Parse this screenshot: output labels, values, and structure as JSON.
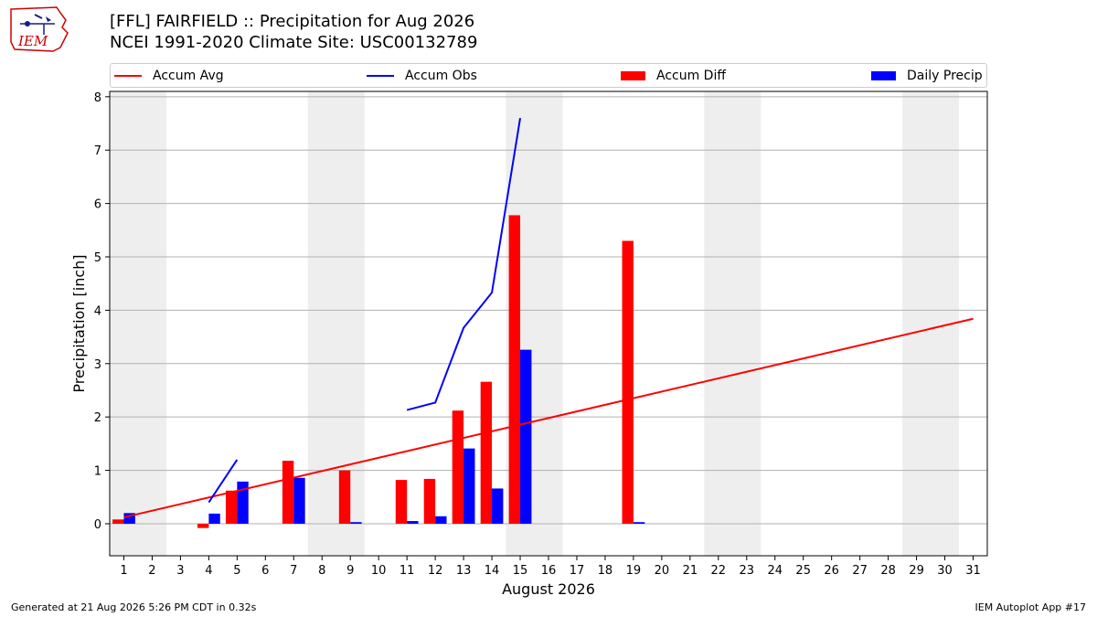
{
  "header": {
    "title_line1": "[FFL] FAIRFIELD :: Precipitation for Aug 2026",
    "title_line2": "NCEI 1991-2020 Climate Site: USC00132789"
  },
  "logo": {
    "text": "IEM",
    "color": "#cc0000"
  },
  "legend": {
    "accum_avg": "Accum Avg",
    "accum_obs": "Accum Obs",
    "accum_diff": "Accum Diff",
    "daily_precip": "Daily Precip"
  },
  "footer": {
    "left": "Generated at 21 Aug 2026 5:26 PM CDT in 0.32s",
    "right": "IEM Autoplot App #17"
  },
  "chart_data": {
    "type": "bar",
    "xlabel": "August 2026",
    "ylabel": "Precipitation [inch]",
    "xlim": [
      0.5,
      31.5
    ],
    "ylim": [
      -0.6,
      8.1
    ],
    "yticks": [
      0,
      1,
      2,
      3,
      4,
      5,
      6,
      7,
      8
    ],
    "xticks": [
      1,
      2,
      3,
      4,
      5,
      6,
      7,
      8,
      9,
      10,
      11,
      12,
      13,
      14,
      15,
      16,
      17,
      18,
      19,
      20,
      21,
      22,
      23,
      24,
      25,
      26,
      27,
      28,
      29,
      30,
      31
    ],
    "grid": "y",
    "legend_position": "top",
    "weekend_shading": [
      [
        0.5,
        2.5
      ],
      [
        7.5,
        9.5
      ],
      [
        14.5,
        16.5
      ],
      [
        21.5,
        23.5
      ],
      [
        28.5,
        30.5
      ]
    ],
    "colors": {
      "accum_avg": "#ff0000",
      "accum_obs": "#0000ff",
      "accum_diff": "#ff0000",
      "daily_precip": "#0000ff",
      "shade": "#eeeeee",
      "grid": "#b0b0b0"
    },
    "accum_avg": {
      "x": [
        1,
        31
      ],
      "y": [
        0.12,
        3.84
      ]
    },
    "accum_obs_segments": [
      {
        "x": [
          4,
          5
        ],
        "y": [
          0.4,
          1.2
        ]
      },
      {
        "x": [
          11,
          12,
          13,
          14,
          15
        ],
        "y": [
          2.13,
          2.27,
          3.67,
          4.33,
          7.6
        ]
      }
    ],
    "accum_diff": {
      "x": [
        1,
        4,
        5,
        7,
        9,
        11,
        12,
        13,
        14,
        15,
        19
      ],
      "values": [
        0.08,
        -0.08,
        0.62,
        1.18,
        1.0,
        0.82,
        0.84,
        2.12,
        2.66,
        5.78,
        5.3
      ]
    },
    "daily_precip": {
      "x": [
        1,
        4,
        5,
        7,
        9,
        11,
        12,
        13,
        14,
        15,
        19
      ],
      "values": [
        0.2,
        0.19,
        0.79,
        0.86,
        0.03,
        0.05,
        0.14,
        1.41,
        0.66,
        3.26,
        0.03
      ]
    }
  }
}
